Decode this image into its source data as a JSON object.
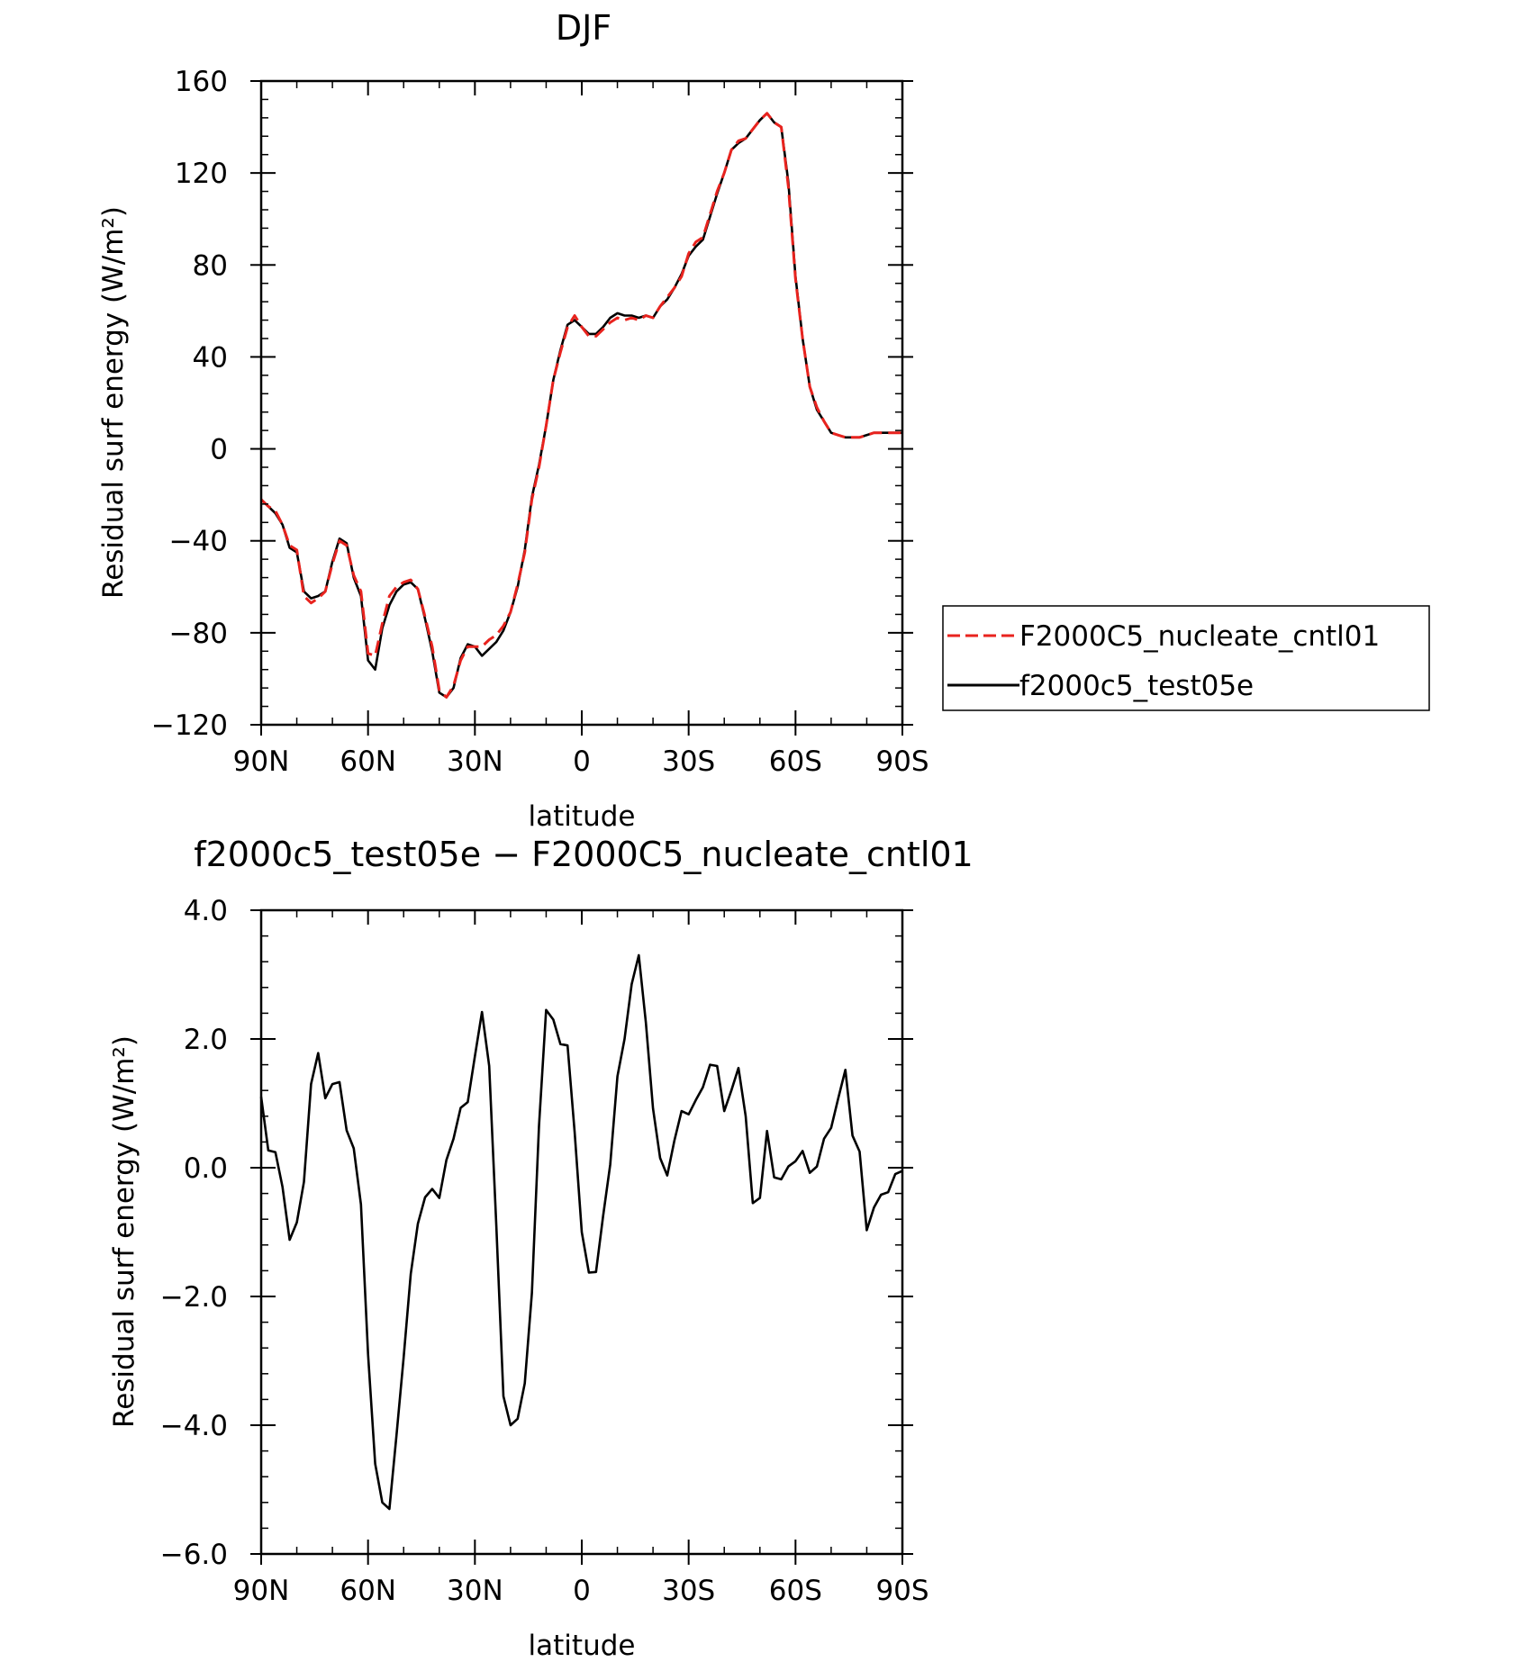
{
  "chart_data": [
    {
      "type": "line",
      "title": "DJF",
      "xlabel": "latitude",
      "ylabel": "Residual surf energy (W/m²)",
      "xlim": [
        90,
        -90
      ],
      "ylim": [
        -120,
        160
      ],
      "x_ticks": [
        {
          "value": 90,
          "label": "90N"
        },
        {
          "value": 60,
          "label": "60N"
        },
        {
          "value": 30,
          "label": "30N"
        },
        {
          "value": 0,
          "label": "0"
        },
        {
          "value": -30,
          "label": "30S"
        },
        {
          "value": -60,
          "label": "60S"
        },
        {
          "value": -90,
          "label": "90S"
        }
      ],
      "y_ticks": [
        {
          "value": 160,
          "label": "160"
        },
        {
          "value": 120,
          "label": "120"
        },
        {
          "value": 80,
          "label": "80"
        },
        {
          "value": 40,
          "label": "40"
        },
        {
          "value": 0,
          "label": "0"
        },
        {
          "value": -40,
          "label": "−40"
        },
        {
          "value": -80,
          "label": "−80"
        },
        {
          "value": -120,
          "label": "−120"
        }
      ],
      "legend": {
        "placement": "right"
      },
      "series": [
        {
          "name": "F2000C5_nucleate_cntl01",
          "color": "#e8231e",
          "dash": "dashed",
          "x": [
            90,
            88,
            86,
            84,
            82,
            80,
            78,
            76,
            74,
            72,
            70,
            68,
            66,
            64,
            62,
            60,
            58,
            56,
            54,
            52,
            50,
            48,
            46,
            44,
            42,
            40,
            38,
            36,
            34,
            32,
            30,
            28,
            26,
            24,
            22,
            20,
            18,
            16,
            14,
            12,
            10,
            8,
            6,
            4,
            2,
            0,
            -2,
            -4,
            -6,
            -8,
            -10,
            -12,
            -14,
            -16,
            -18,
            -20,
            -22,
            -24,
            -26,
            -28,
            -30,
            -32,
            -34,
            -36,
            -38,
            -40,
            -42,
            -44,
            -46,
            -48,
            -50,
            -52,
            -54,
            -56,
            -58,
            -60,
            -62,
            -64,
            -66,
            -68,
            -70,
            -72,
            -74,
            -76,
            -78,
            -80,
            -82,
            -84,
            -86,
            -88,
            -90
          ],
          "y": [
            -22,
            -25,
            -27,
            -33,
            -42,
            -44,
            -64,
            -67,
            -65,
            -62,
            -50,
            -40,
            -42,
            -55,
            -62,
            -89,
            -90,
            -76,
            -64,
            -60,
            -58,
            -57,
            -61,
            -73,
            -86,
            -105,
            -108,
            -103,
            -92,
            -86,
            -86,
            -86,
            -83,
            -81,
            -77,
            -71,
            -59,
            -45,
            -22,
            -8,
            10,
            30,
            42,
            53,
            58,
            53,
            49,
            49,
            52,
            55,
            57,
            56,
            57,
            56,
            58,
            57,
            62,
            66,
            70,
            75,
            85,
            90,
            92,
            102,
            112,
            120,
            130,
            134,
            135,
            139,
            143,
            146,
            142,
            140,
            114,
            74,
            48,
            27,
            18,
            12,
            7,
            6,
            5,
            5,
            5,
            6,
            7,
            7,
            7,
            7,
            7
          ],
          "y_note": "values estimated from gridlines"
        },
        {
          "name": "f2000c5_test05e",
          "color": "#000000",
          "dash": "solid",
          "x": [
            90,
            88,
            86,
            84,
            82,
            80,
            78,
            76,
            74,
            72,
            70,
            68,
            66,
            64,
            62,
            60,
            58,
            56,
            54,
            52,
            50,
            48,
            46,
            44,
            42,
            40,
            38,
            36,
            34,
            32,
            30,
            28,
            26,
            24,
            22,
            20,
            18,
            16,
            14,
            12,
            10,
            8,
            6,
            4,
            2,
            0,
            -2,
            -4,
            -6,
            -8,
            -10,
            -12,
            -14,
            -16,
            -18,
            -20,
            -22,
            -24,
            -26,
            -28,
            -30,
            -32,
            -34,
            -36,
            -38,
            -40,
            -42,
            -44,
            -46,
            -48,
            -50,
            -52,
            -54,
            -56,
            -58,
            -60,
            -62,
            -64,
            -66,
            -68,
            -70,
            -72,
            -74,
            -76,
            -78,
            -80,
            -82,
            -84,
            -86,
            -88,
            -90
          ],
          "y": [
            -22,
            -25,
            -28,
            -33,
            -43,
            -45,
            -62,
            -65,
            -64,
            -62,
            -49,
            -39,
            -41,
            -56,
            -64,
            -92,
            -96,
            -78,
            -68,
            -62,
            -59,
            -58,
            -61,
            -74,
            -88,
            -106,
            -108,
            -104,
            -91,
            -85,
            -86,
            -90,
            -87,
            -84,
            -79,
            -71,
            -60,
            -44,
            -21,
            -7,
            10,
            30,
            43,
            54,
            56,
            53,
            50,
            50,
            53,
            57,
            59,
            58,
            58,
            57,
            58,
            57,
            62,
            65,
            70,
            76,
            84,
            88,
            91,
            101,
            111,
            120,
            130,
            133,
            135,
            139,
            143,
            146,
            142,
            140,
            116,
            75,
            48,
            27,
            17,
            12,
            7,
            6,
            5,
            5,
            5,
            6,
            7,
            7,
            7,
            7,
            7
          ],
          "y_note": "values estimated from gridlines"
        }
      ]
    },
    {
      "type": "line",
      "title": "f2000c5_test05e − F2000C5_nucleate_cntl01",
      "xlabel": "latitude",
      "ylabel": "Residual surf energy (W/m²)",
      "xlim": [
        90,
        -90
      ],
      "ylim": [
        -6.0,
        4.0
      ],
      "x_ticks": [
        {
          "value": 90,
          "label": "90N"
        },
        {
          "value": 60,
          "label": "60N"
        },
        {
          "value": 30,
          "label": "30N"
        },
        {
          "value": 0,
          "label": "0"
        },
        {
          "value": -30,
          "label": "30S"
        },
        {
          "value": -60,
          "label": "60S"
        },
        {
          "value": -90,
          "label": "90S"
        }
      ],
      "y_ticks": [
        {
          "value": 4.0,
          "label": "4.0"
        },
        {
          "value": 2.0,
          "label": "2.0"
        },
        {
          "value": 0.0,
          "label": "0.0"
        },
        {
          "value": -2.0,
          "label": "−2.0"
        },
        {
          "value": -4.0,
          "label": "−4.0"
        },
        {
          "value": -6.0,
          "label": "−6.0"
        }
      ],
      "series": [
        {
          "color": "#000000",
          "dash": "solid",
          "x": [
            90,
            88,
            86,
            84,
            82,
            80,
            78,
            76,
            74,
            72,
            70,
            68,
            66,
            64,
            62,
            60,
            58,
            56,
            54,
            52,
            50,
            48,
            46,
            44,
            42,
            40,
            38,
            36,
            34,
            32,
            30,
            28,
            26,
            24,
            22,
            20,
            18,
            16,
            14,
            12,
            10,
            8,
            6,
            4,
            2,
            0,
            -2,
            -4,
            -6,
            -8,
            -10,
            -12,
            -14,
            -16,
            -18,
            -20,
            -22,
            -24,
            -26,
            -28,
            -30,
            -32,
            -34,
            -36,
            -38,
            -40,
            -42,
            -44,
            -46,
            -48,
            -50,
            -52,
            -54,
            -56,
            -58,
            -60,
            -62,
            -64,
            -66,
            -68,
            -70,
            -72,
            -74,
            -76,
            -78,
            -80,
            -82,
            -84,
            -86,
            -88,
            -90
          ],
          "y": [
            1.1,
            0.27,
            0.24,
            -0.3,
            -1.12,
            -0.85,
            -0.22,
            1.3,
            1.78,
            1.08,
            1.3,
            1.33,
            0.58,
            0.3,
            -0.57,
            -2.9,
            -4.6,
            -5.2,
            -5.3,
            -4.15,
            -2.95,
            -1.65,
            -0.87,
            -0.46,
            -0.33,
            -0.47,
            0.12,
            0.45,
            0.93,
            1.02,
            1.73,
            2.42,
            1.58,
            -0.9,
            -3.55,
            -4.0,
            -3.9,
            -3.35,
            -1.95,
            0.65,
            2.45,
            2.3,
            1.92,
            1.9,
            0.55,
            -1.0,
            -1.63,
            -1.62,
            -0.75,
            0.05,
            1.42,
            2.0,
            2.85,
            3.3,
            2.25,
            0.92,
            0.15,
            -0.12,
            0.42,
            0.88,
            0.83,
            1.05,
            1.25,
            1.6,
            1.58,
            0.88,
            1.2,
            1.55,
            0.8,
            -0.55,
            -0.47,
            0.57,
            -0.15,
            -0.18,
            0.02,
            0.1,
            0.26,
            -0.08,
            0.02,
            0.45,
            0.62,
            1.08,
            1.52,
            0.5,
            0.25,
            -0.97,
            -0.62,
            -0.42,
            -0.38,
            -0.1,
            -0.05
          ],
          "y_note": "values estimated from gridlines"
        }
      ]
    }
  ]
}
